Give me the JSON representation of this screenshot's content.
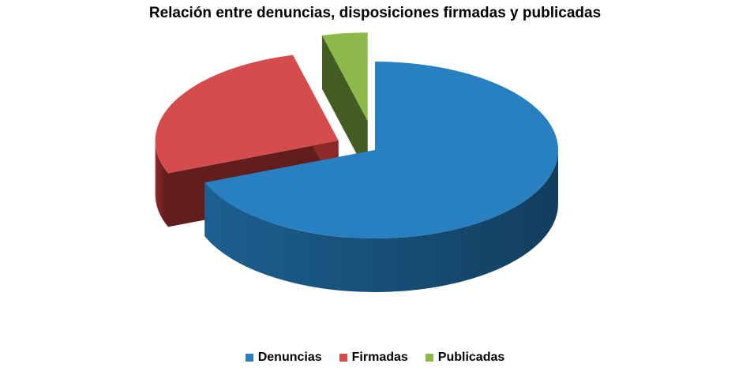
{
  "chart_data": {
    "type": "pie",
    "title": "Relación entre denuncias,  disposiciones firmadas y publicadas",
    "categories": [
      "Denuncias",
      "Firmadas",
      "Publicadas"
    ],
    "values": [
      69,
      27,
      4
    ],
    "colors": [
      "#2980c0",
      "#d54c4c",
      "#8db84a"
    ],
    "side_colors": [
      "#1c5f90",
      "#8c2a2a",
      "#5f8430"
    ],
    "legend_position": "bottom",
    "exploded": true,
    "three_d": true
  },
  "legend": [
    {
      "label": "Denuncias",
      "color": "#2980c0"
    },
    {
      "label": "Firmadas",
      "color": "#d54c4c"
    },
    {
      "label": "Publicadas",
      "color": "#8db84a"
    }
  ]
}
